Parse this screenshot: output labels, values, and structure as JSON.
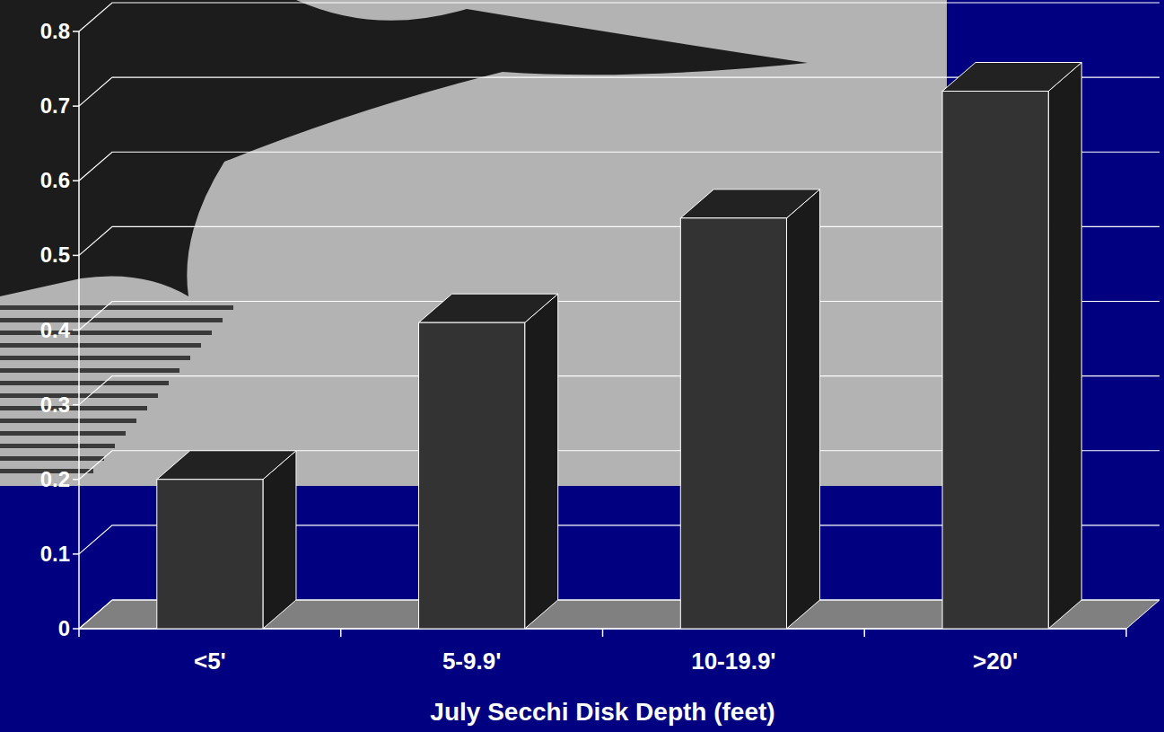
{
  "chart_data": {
    "type": "bar",
    "x_label": "July Secchi Disk Depth (feet)",
    "categories": [
      "<5'",
      "5-9.9'",
      "10-19.9'",
      ">20'"
    ],
    "values": [
      0.2,
      0.41,
      0.55,
      0.72
    ],
    "color": "#333333",
    "ylim": [
      0,
      0.8
    ],
    "yticks": [
      0,
      0.1,
      0.2,
      0.3,
      0.4,
      0.5,
      0.6,
      0.7,
      0.8
    ],
    "grid": true
  }
}
